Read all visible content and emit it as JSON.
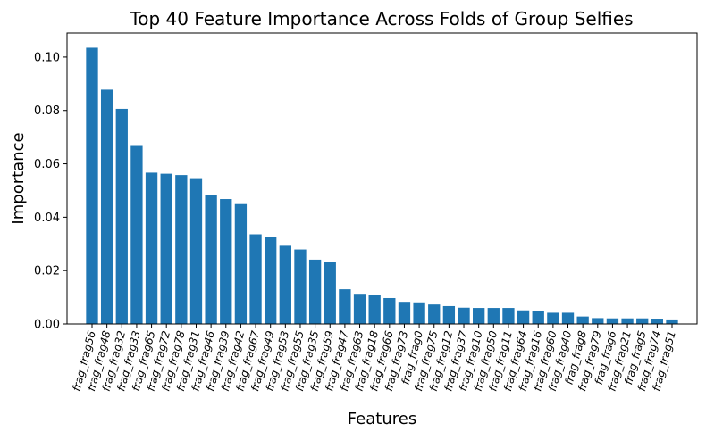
{
  "chart_data": {
    "type": "bar",
    "title": "Top 40 Feature Importance Across Folds of Group Selfies",
    "xlabel": "Features",
    "ylabel": "Importance",
    "ylim": [
      0,
      0.109
    ],
    "yticks": [
      0.0,
      0.02,
      0.04,
      0.06,
      0.08,
      0.1
    ],
    "ytick_labels": [
      "0.00",
      "0.02",
      "0.04",
      "0.06",
      "0.08",
      "0.10"
    ],
    "grid": false,
    "bar_color": "#1f77b4",
    "categories": [
      "frag_frag56",
      "frag_frag48",
      "frag_frag32",
      "frag_frag33",
      "frag_frag65",
      "frag_frag72",
      "frag_frag78",
      "frag_frag31",
      "frag_frag46",
      "frag_frag39",
      "frag_frag42",
      "frag_frag67",
      "frag_frag49",
      "frag_frag53",
      "frag_frag55",
      "frag_frag35",
      "frag_frag59",
      "frag_frag47",
      "frag_frag63",
      "frag_frag18",
      "frag_frag66",
      "frag_frag73",
      "frag_frag0",
      "frag_frag75",
      "frag_frag12",
      "frag_frag37",
      "frag_frag10",
      "frag_frag50",
      "frag_frag11",
      "frag_frag64",
      "frag_frag16",
      "frag_frag60",
      "frag_frag40",
      "frag_frag8",
      "frag_frag79",
      "frag_frag6",
      "frag_frag21",
      "frag_frag5",
      "frag_frag74",
      "frag_frag51"
    ],
    "values": [
      0.1035,
      0.0878,
      0.0806,
      0.0667,
      0.0567,
      0.0563,
      0.0558,
      0.0543,
      0.0484,
      0.0468,
      0.0449,
      0.0336,
      0.0326,
      0.0293,
      0.0279,
      0.0241,
      0.0233,
      0.013,
      0.0113,
      0.0107,
      0.0097,
      0.0083,
      0.0081,
      0.0073,
      0.0067,
      0.0061,
      0.006,
      0.006,
      0.006,
      0.0051,
      0.0048,
      0.0042,
      0.0042,
      0.0028,
      0.0022,
      0.0021,
      0.0021,
      0.0021,
      0.002,
      0.0017
    ]
  }
}
